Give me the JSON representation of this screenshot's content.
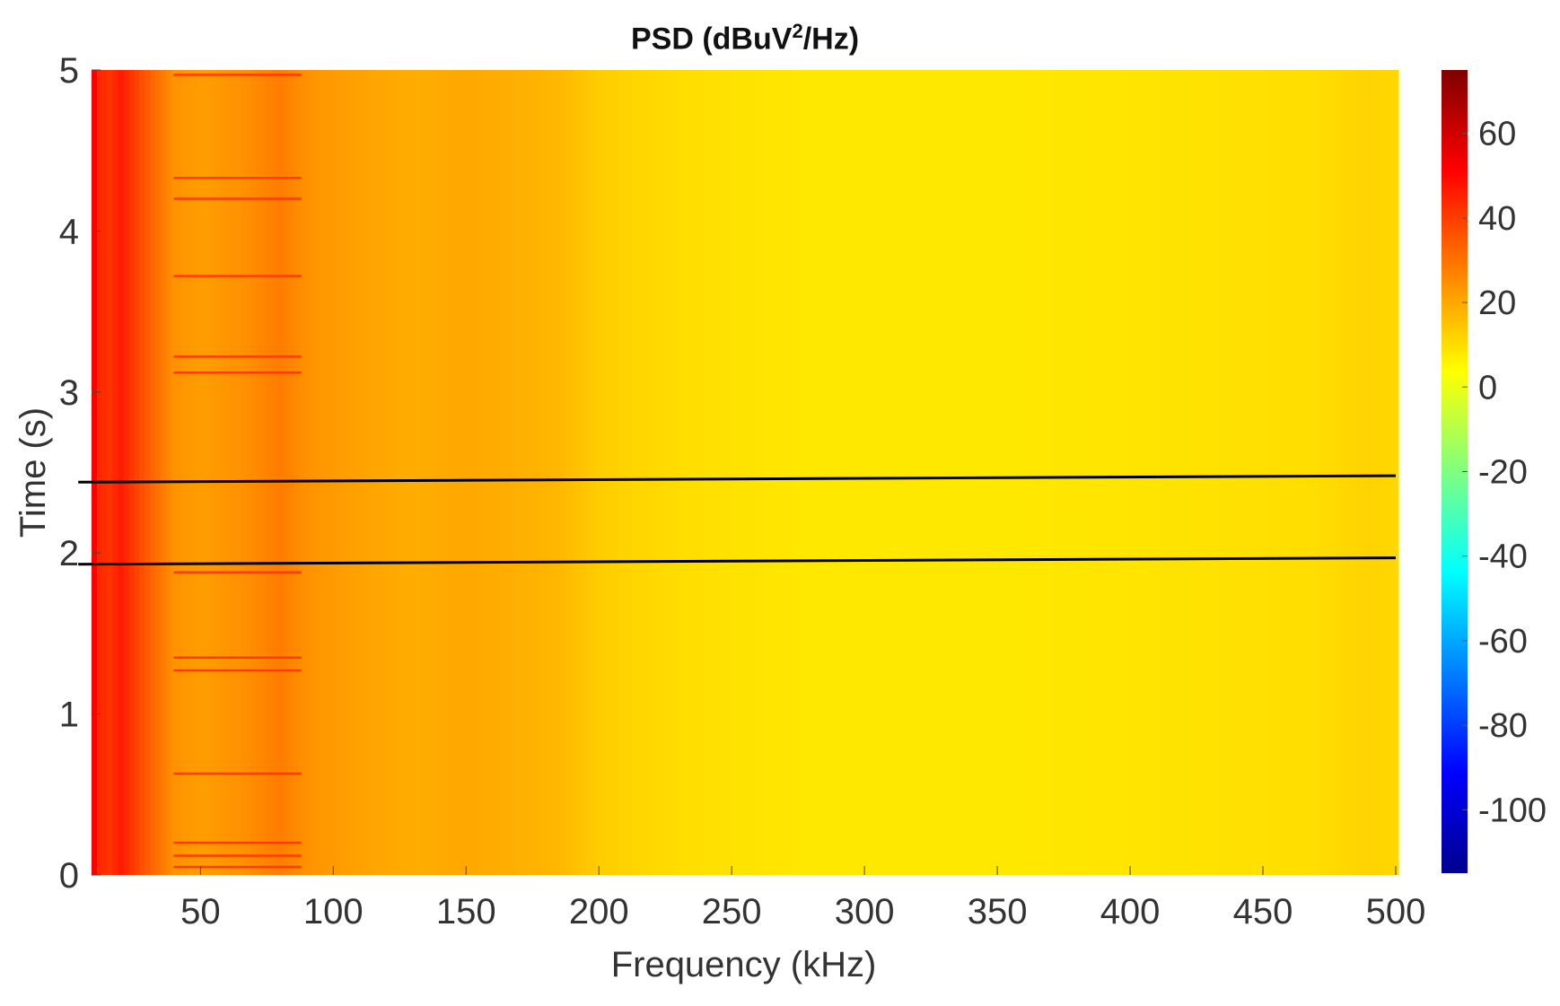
{
  "chart_data": {
    "type": "heatmap",
    "title_main": "PSD (dBuV",
    "title_sup": "2",
    "title_tail": "/Hz)",
    "xlabel": "Frequency (kHz)",
    "ylabel": "Time (s)",
    "xlim": [
      9,
      500
    ],
    "ylim": [
      0,
      5
    ],
    "x_ticks": [
      50,
      100,
      150,
      200,
      250,
      300,
      350,
      400,
      450,
      500
    ],
    "y_ticks": [
      0,
      1,
      2,
      3,
      4,
      5
    ],
    "colorbar": {
      "colormap": "jet",
      "clim": [
        -115,
        75
      ],
      "ticks": [
        60,
        40,
        20,
        0,
        -20,
        -40,
        -60,
        -80,
        -100
      ]
    },
    "background_level": {
      "frequency_khz": [
        9,
        12,
        16,
        20,
        25,
        32,
        40,
        50,
        65,
        80,
        90,
        110,
        130,
        150,
        165,
        185,
        200,
        230,
        280,
        350,
        420,
        470,
        490,
        500
      ],
      "psd_db": [
        55,
        44,
        42,
        46,
        40,
        32,
        24,
        22,
        24,
        28,
        24,
        21,
        19,
        20,
        19,
        17,
        13,
        10,
        8,
        8,
        9,
        10,
        12,
        11
      ]
    },
    "horizontal_streaks": {
      "frequency_range_khz": [
        40,
        88
      ],
      "times_s": [
        0.05,
        0.12,
        0.2,
        0.63,
        1.27,
        1.35,
        1.88,
        3.12,
        3.22,
        3.72,
        4.2,
        4.33,
        4.97
      ],
      "psd_db": 40
    },
    "marker_lines": [
      {
        "x": [
          4,
          500
        ],
        "y": [
          2.44,
          2.48
        ]
      },
      {
        "x": [
          4,
          500
        ],
        "y": [
          1.93,
          1.97
        ]
      }
    ]
  }
}
